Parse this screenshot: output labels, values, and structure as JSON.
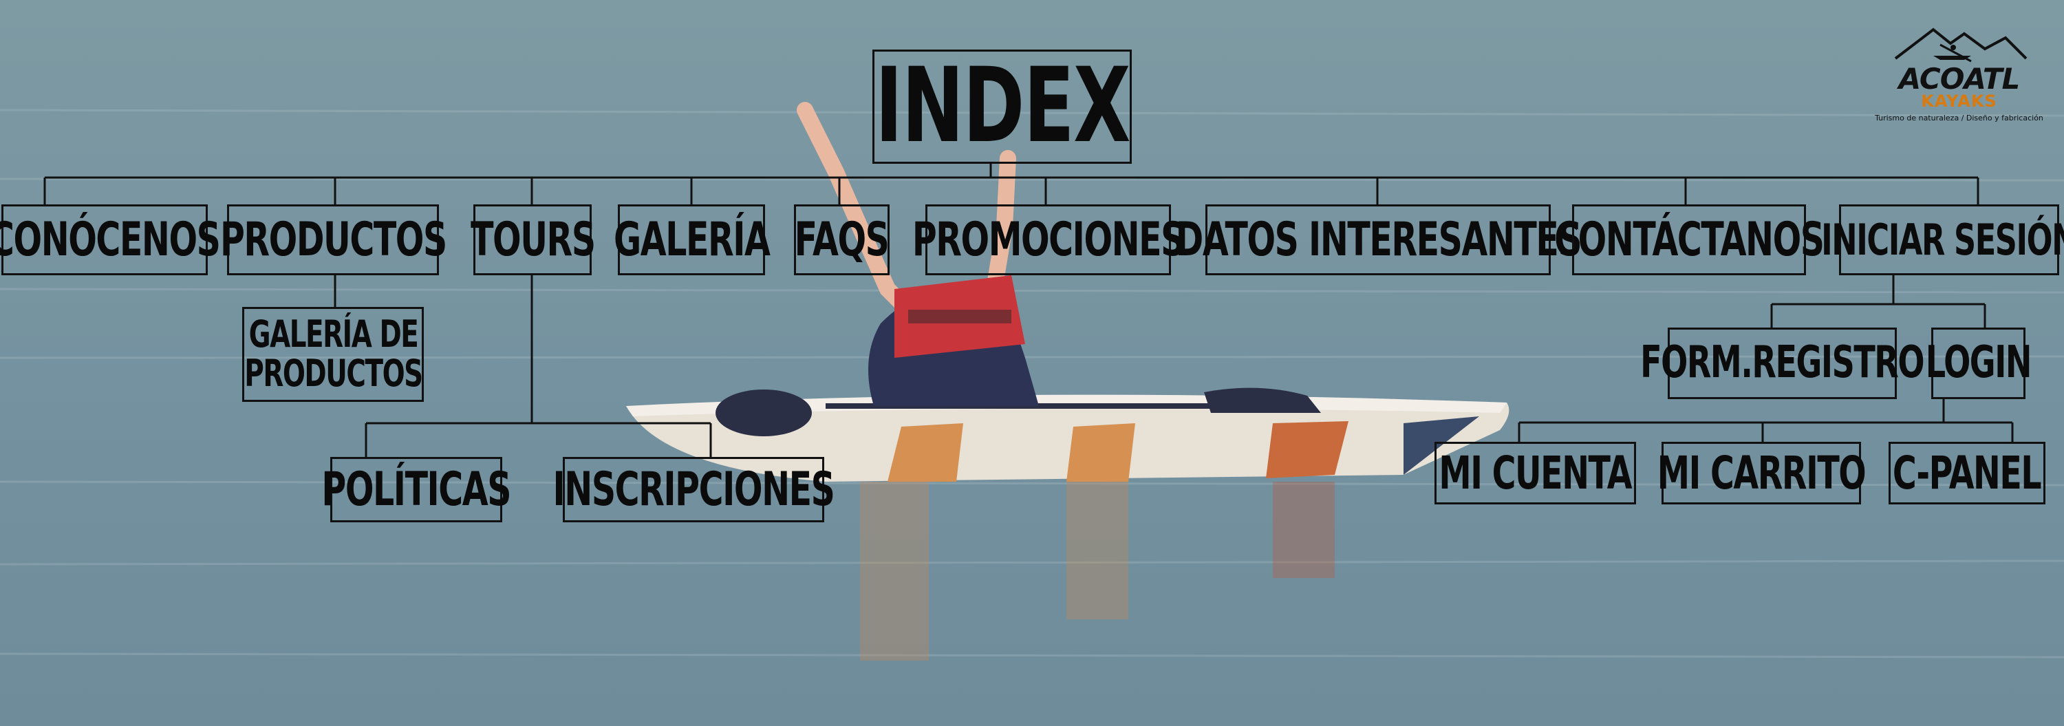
{
  "colors": {
    "water_top": "#7e9aa3",
    "water_mid": "#7592a0",
    "water_bottom": "#6e8c9a",
    "line": "#111111",
    "logo_accent": "#d87a12"
  },
  "diagram": {
    "root": "INDEX",
    "main_menu": [
      "CONÓCENOS",
      "PRODUCTOS",
      "TOURS",
      "GALERÍA",
      "FAQS",
      "PROMOCIONES",
      "DATOS INTERESANTES",
      "CONTÁCTANOS",
      "INICIAR SESIÓN"
    ],
    "productos_children": [
      "GALERÍA DE\nPRODUCTOS"
    ],
    "tours_children": [
      "POLÍTICAS",
      "INSCRIPCIONES"
    ],
    "sesion_children": [
      "FORM.REGISTRO",
      "LOGIN"
    ],
    "login_children": [
      "MI CUENTA",
      "MI CARRITO",
      "C-PANEL"
    ]
  },
  "logo": {
    "name": "ACOATL",
    "sub": "KAYAKS",
    "tagline": "Turismo de naturaleza / Diseño y fabricación"
  },
  "icons": {
    "logo_mark": "mountain-paddler-icon",
    "background": "kayaker-on-lake-photo"
  }
}
